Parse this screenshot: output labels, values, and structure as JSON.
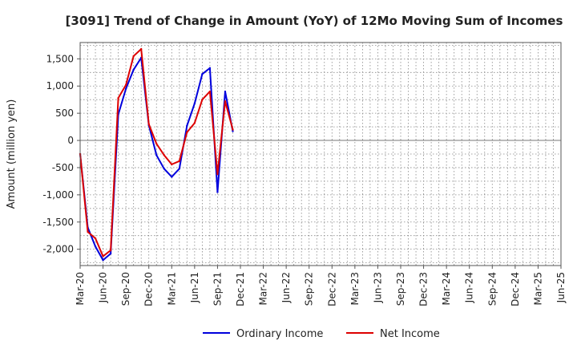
{
  "chart_data": {
    "type": "line",
    "title": "[3091]  Trend of Change in Amount (YoY) of 12Mo Moving Sum of Incomes",
    "ylabel": "Amount (million yen)",
    "xlabel": "",
    "ylim": [
      -2300,
      1800
    ],
    "yticks": [
      -2000,
      -1500,
      -1000,
      -500,
      0,
      500,
      1000,
      1500
    ],
    "ytick_labels": [
      "-2,000",
      "-1,500",
      "-1,000",
      "-500",
      "0",
      "500",
      "1,000",
      "1,500"
    ],
    "x_tick_labels": [
      "Mar-20",
      "Jun-20",
      "Sep-20",
      "Dec-20",
      "Mar-21",
      "Jun-21",
      "Sep-21",
      "Dec-21",
      "Mar-22",
      "Jun-22",
      "Sep-22",
      "Dec-22",
      "Mar-23",
      "Jun-23",
      "Sep-23",
      "Dec-23",
      "Mar-24",
      "Jun-24",
      "Sep-24",
      "Dec-24",
      "Mar-25",
      "Jun-25"
    ],
    "x_ticks_per_label": 3,
    "grid": true,
    "legend_position": "bottom",
    "series": [
      {
        "name": "Ordinary Income",
        "color": "#0000dd",
        "values": [
          -250,
          -1600,
          -1950,
          -2200,
          -2080,
          480,
          950,
          1300,
          1520,
          280,
          -270,
          -520,
          -670,
          -520,
          270,
          680,
          1220,
          1330,
          -950,
          900,
          170
        ]
      },
      {
        "name": "Net Income",
        "color": "#dd0000",
        "values": [
          -250,
          -1680,
          -1800,
          -2130,
          -2020,
          780,
          1020,
          1550,
          1680,
          300,
          -60,
          -270,
          -440,
          -380,
          150,
          320,
          750,
          900,
          -620,
          720,
          200
        ]
      }
    ]
  }
}
